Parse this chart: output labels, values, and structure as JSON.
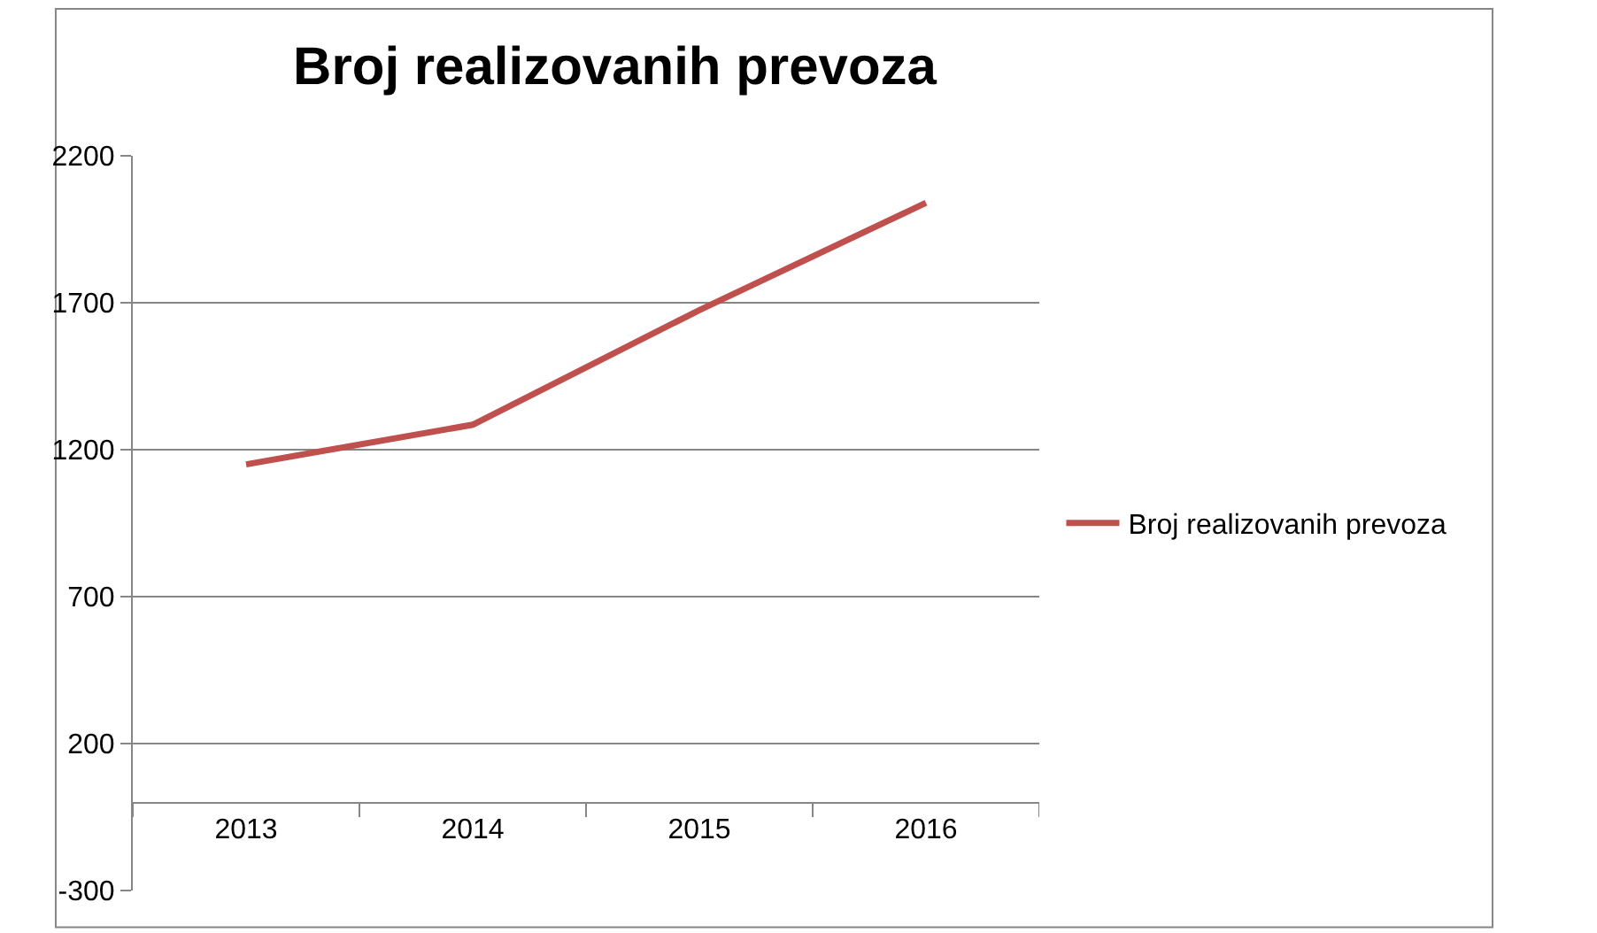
{
  "chart_data": {
    "type": "line",
    "title": "Broj realizovanih prevoza",
    "categories": [
      "2013",
      "2014",
      "2015",
      "2016"
    ],
    "series": [
      {
        "name": "Broj realizovanih prevoza",
        "color": "#c0504d",
        "values": [
          1150,
          1285,
          1675,
          2040
        ]
      }
    ],
    "ylim": [
      -300,
      2200
    ],
    "yticks": [
      -300,
      200,
      700,
      1200,
      1700,
      2200
    ],
    "grid": "y",
    "legend": "right",
    "marker": "none",
    "line_style": "solid"
  }
}
